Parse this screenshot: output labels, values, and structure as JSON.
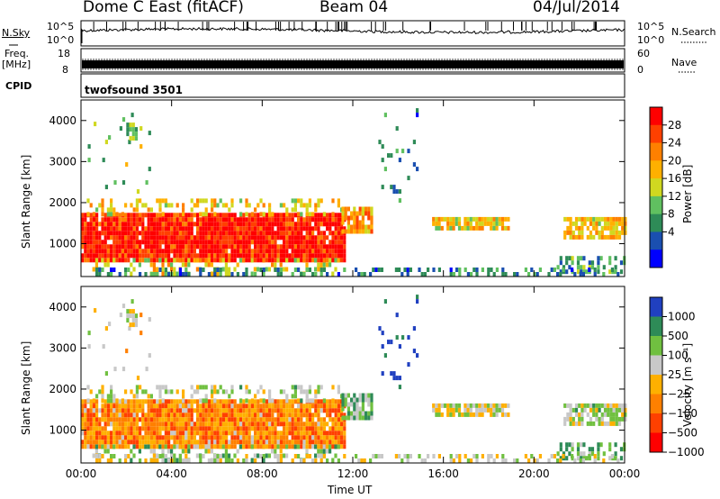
{
  "header": {
    "title": "Dome C East (fitACF)",
    "beam": "Beam 04",
    "date": "04/Jul/2014"
  },
  "strip_panels": {
    "nsky_label": "N.Sky",
    "nsky_ticks": [
      "10^5",
      "10^0"
    ],
    "nsearch_label": "N.Search",
    "freq_label": "Freq.",
    "freq_unit": "[MHz]",
    "freq_ticks": [
      "18",
      "8"
    ],
    "nave_label": "Nave",
    "nave_ticks": [
      "60",
      "0"
    ],
    "cpid_label": "CPID",
    "cpid_value": "twofsound 3501"
  },
  "chart_data": [
    {
      "type": "heatmap",
      "panel": "power",
      "ylabel": "Slant Range [km]",
      "xlabel": "",
      "x_ticks": [
        "00:00",
        "04:00",
        "08:00",
        "12:00",
        "16:00",
        "20:00",
        "00:00"
      ],
      "y_ticks": [
        1000,
        2000,
        3000,
        4000
      ],
      "ylim": [
        200,
        4500
      ],
      "colorbar": {
        "label": "Power [dB]",
        "ticks": [
          "28",
          "24",
          "20",
          "16",
          "12",
          "8",
          "4"
        ],
        "colors": [
          "#ff0000",
          "#ff4000",
          "#ff8000",
          "#ffb000",
          "#d0d820",
          "#60c060",
          "#2e8b57",
          "#1a4fb0",
          "#0000ff"
        ]
      }
    },
    {
      "type": "heatmap",
      "panel": "velocity",
      "ylabel": "Slant Range [km]",
      "xlabel": "Time UT",
      "x_ticks": [
        "00:00",
        "04:00",
        "08:00",
        "12:00",
        "16:00",
        "20:00",
        "00:00"
      ],
      "y_ticks": [
        1000,
        2000,
        3000,
        4000
      ],
      "ylim": [
        200,
        4500
      ],
      "colorbar": {
        "label": "Velocity [m s⁻¹]",
        "ticks": [
          "1000",
          "500",
          "100",
          "25",
          "−25",
          "−100",
          "−500",
          "−1000"
        ],
        "colors": [
          "#2040c0",
          "#2e8b57",
          "#70c040",
          "#c8c8c8",
          "#ffb000",
          "#ff8000",
          "#ff4000",
          "#ff0000"
        ]
      }
    }
  ]
}
